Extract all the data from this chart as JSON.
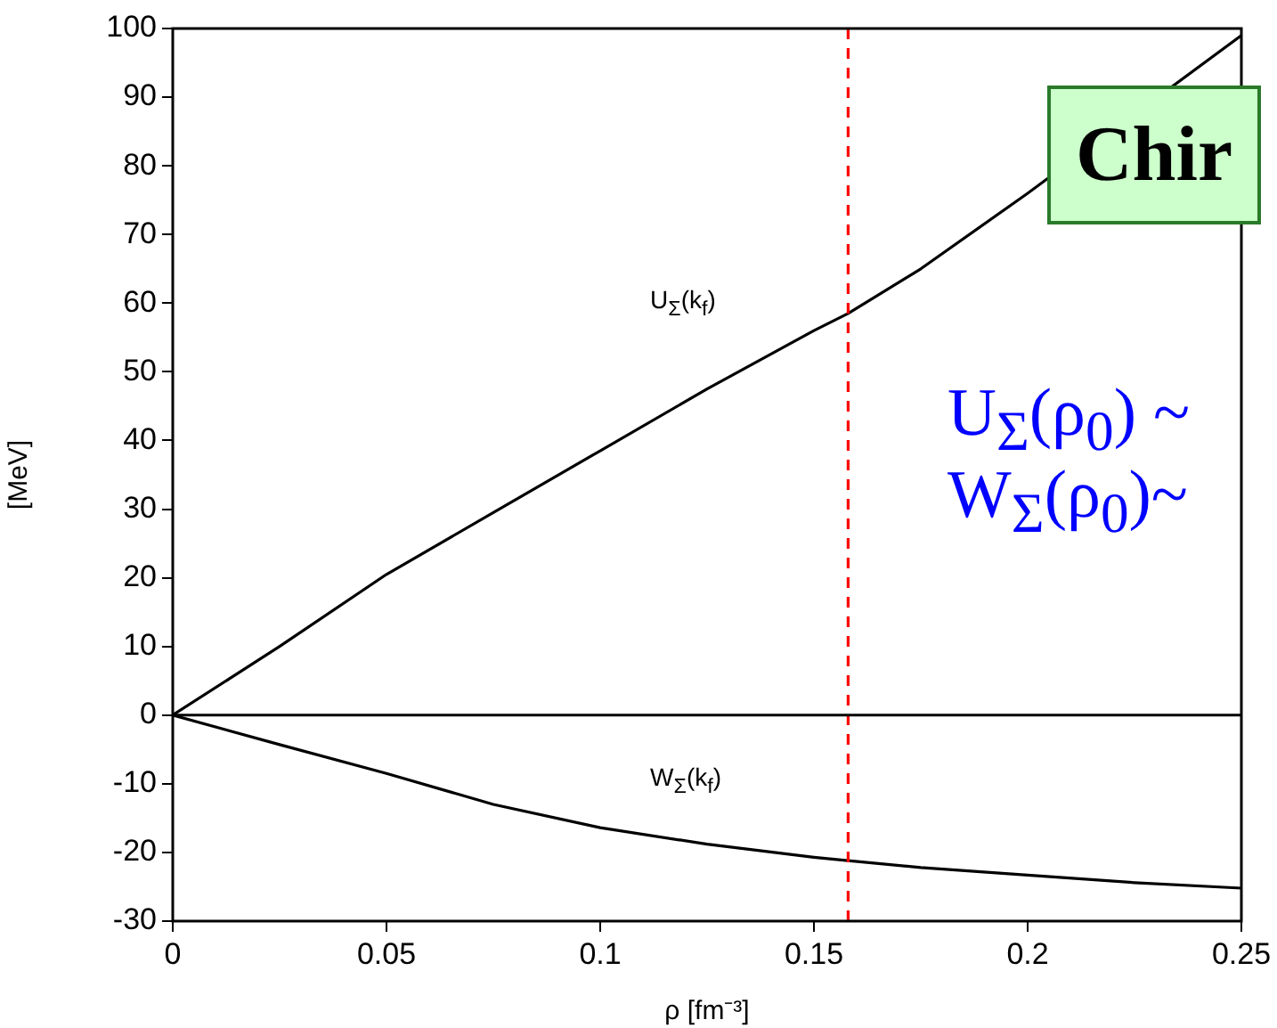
{
  "chart_data": {
    "type": "line",
    "xlabel": "ρ [fm⁻³]",
    "ylabel": "[MeV]",
    "x": [
      0,
      0.025,
      0.05,
      0.075,
      0.1,
      0.125,
      0.15,
      0.158,
      0.175,
      0.2,
      0.225,
      0.25
    ],
    "series": [
      {
        "name": "U$_{Σ}$(k$_{f}$)",
        "color": "#000000",
        "values": [
          0,
          10,
          20.5,
          29.5,
          38.5,
          47.5,
          56,
          58.5,
          65,
          76,
          null,
          99
        ]
      },
      {
        "name": "W$_{Σ}$(k$_{f}$)",
        "color": "#000000",
        "values": [
          0,
          -4.3,
          -8.5,
          -13,
          -16.4,
          -18.8,
          -20.7,
          -21.2,
          -22.2,
          -23.3,
          -24.4,
          -25.2
        ]
      }
    ],
    "xlim": [
      0,
      0.25
    ],
    "xticks": [
      0,
      0.05,
      0.1,
      0.15,
      0.2,
      0.25
    ],
    "ylim": [
      -30,
      100
    ],
    "yticks": [
      -30,
      -20,
      -10,
      0,
      10,
      20,
      30,
      40,
      50,
      60,
      70,
      80,
      90,
      100
    ],
    "ref_lines": [
      {
        "axis": "x",
        "value": 0.158,
        "color": "#ff0000",
        "line_style": "dashed"
      },
      {
        "axis": "y",
        "value": 0,
        "color": "#000000",
        "line_style": "solid"
      }
    ],
    "annotations": [
      "Chir",
      "U$_{Σ}$(ρ$_{0}$) ~",
      "W$_{Σ}$(ρ$_{0}$)~"
    ],
    "grid": false,
    "legend": false,
    "marker": "none",
    "line_style": "solid"
  }
}
